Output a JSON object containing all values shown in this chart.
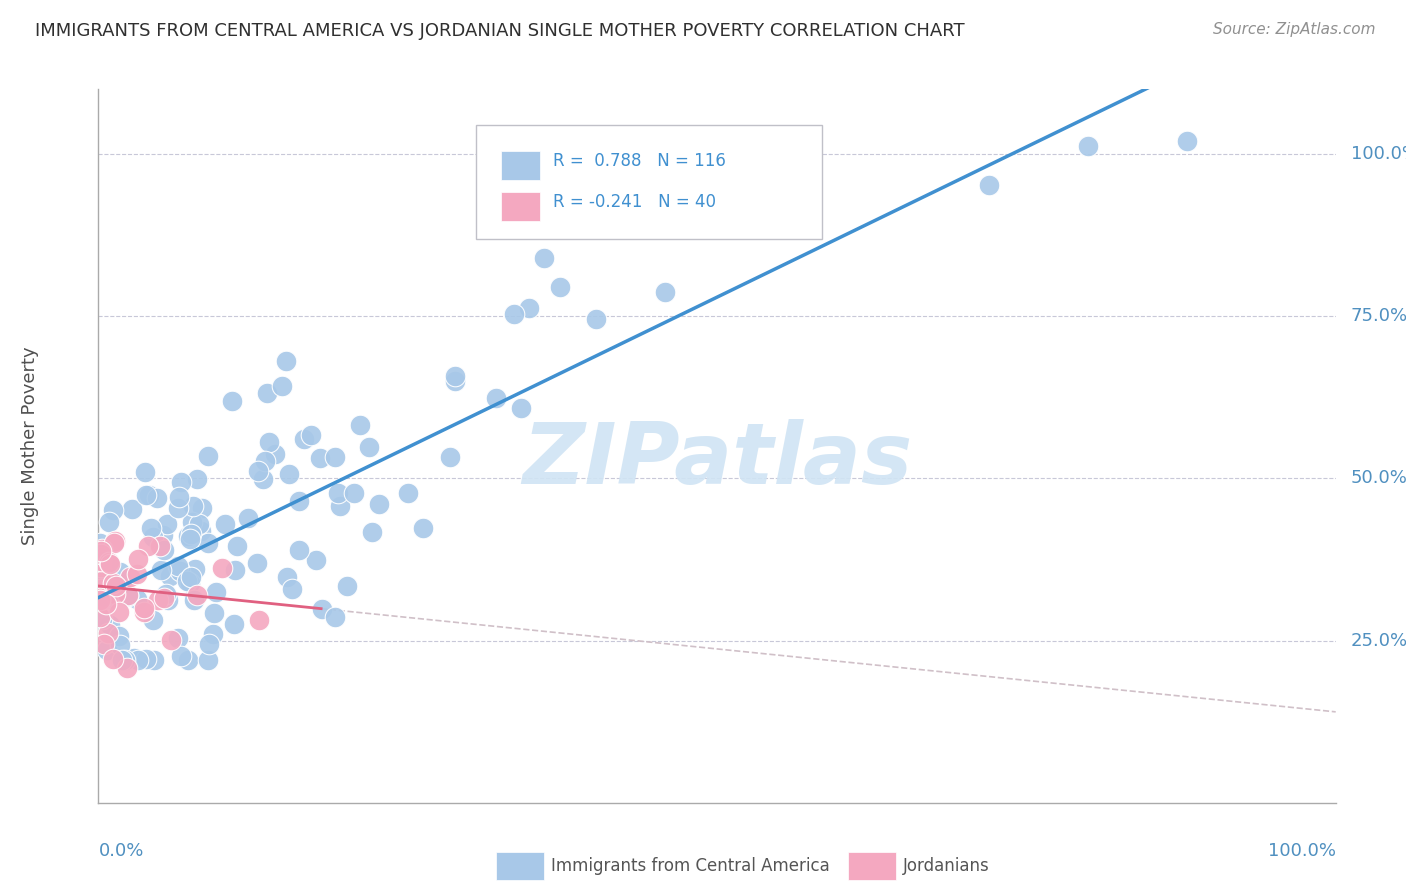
{
  "title": "IMMIGRANTS FROM CENTRAL AMERICA VS JORDANIAN SINGLE MOTHER POVERTY CORRELATION CHART",
  "source": "Source: ZipAtlas.com",
  "ylabel": "Single Mother Poverty",
  "blue_color": "#A8C8E8",
  "pink_color": "#F4A8C0",
  "blue_line_color": "#4090D0",
  "pink_line_color": "#E06080",
  "pink_dash_color": "#D0C0C8",
  "watermark_color": "#D0E4F4",
  "right_tick_color": "#5090C0",
  "xlabel_color": "#5090C0",
  "background_color": "#ffffff",
  "grid_color": "#C8C8D8",
  "title_color": "#303030",
  "source_color": "#909090",
  "ylabel_color": "#505050",
  "legend_border_color": "#C0C0C8"
}
